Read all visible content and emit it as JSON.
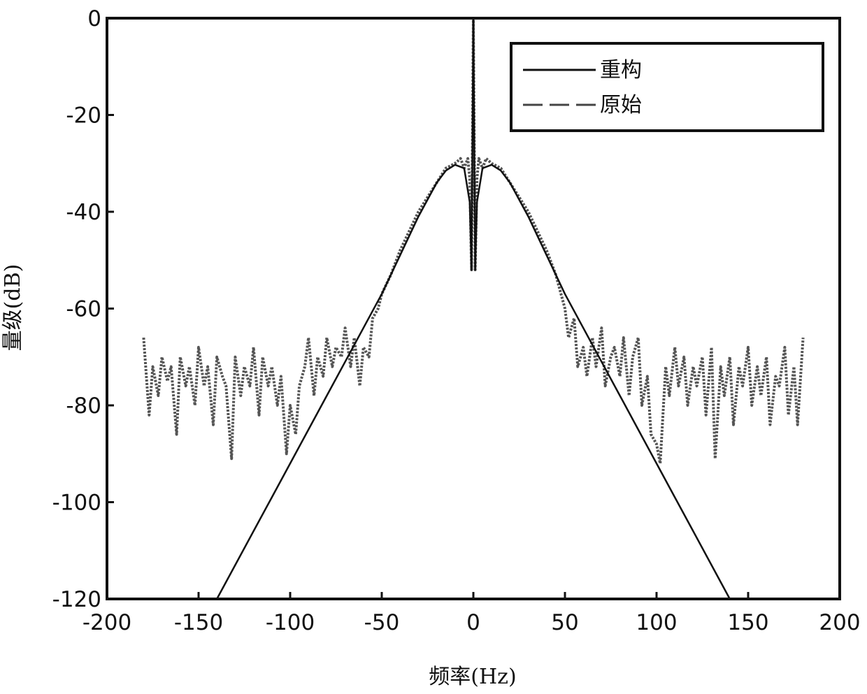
{
  "chart_data": {
    "type": "line",
    "title": "",
    "xlabel": "频率(Hz)",
    "ylabel": "量级(dB)",
    "xlim": [
      -200,
      200
    ],
    "ylim": [
      -120,
      0
    ],
    "xticks": [
      -200,
      -150,
      -100,
      -50,
      0,
      50,
      100,
      150,
      200
    ],
    "yticks": [
      0,
      -20,
      -40,
      -60,
      -80,
      -100,
      -120
    ],
    "grid": false,
    "legend": {
      "position": "top-right",
      "entries": [
        "重构",
        "原始"
      ]
    },
    "series": [
      {
        "name": "重构",
        "style": "solid",
        "color": "#111111",
        "points": [
          [
            -140,
            -120
          ],
          [
            -130,
            -113
          ],
          [
            -120,
            -106
          ],
          [
            -110,
            -99
          ],
          [
            -100,
            -92
          ],
          [
            -90,
            -85
          ],
          [
            -80,
            -78
          ],
          [
            -70,
            -71
          ],
          [
            -60,
            -64
          ],
          [
            -50,
            -57
          ],
          [
            -40,
            -49
          ],
          [
            -30,
            -41
          ],
          [
            -20,
            -34
          ],
          [
            -15,
            -31.5
          ],
          [
            -10,
            -30.3
          ],
          [
            -5,
            -31
          ],
          [
            -2,
            -38
          ],
          [
            -1,
            -52
          ],
          [
            0,
            0
          ],
          [
            1,
            -52
          ],
          [
            2,
            -38
          ],
          [
            5,
            -31
          ],
          [
            10,
            -30.3
          ],
          [
            15,
            -31.5
          ],
          [
            20,
            -34
          ],
          [
            30,
            -41
          ],
          [
            40,
            -49
          ],
          [
            50,
            -57
          ],
          [
            60,
            -64
          ],
          [
            70,
            -71
          ],
          [
            80,
            -78
          ],
          [
            90,
            -85
          ],
          [
            100,
            -92
          ],
          [
            110,
            -99
          ],
          [
            120,
            -106
          ],
          [
            130,
            -113
          ],
          [
            140,
            -120
          ]
        ]
      },
      {
        "name": "原始",
        "style": "dashed",
        "color": "#555555",
        "points": [
          [
            -180,
            -66
          ],
          [
            -177,
            -82
          ],
          [
            -175,
            -72
          ],
          [
            -172,
            -78
          ],
          [
            -170,
            -70
          ],
          [
            -167,
            -75
          ],
          [
            -165,
            -72
          ],
          [
            -162,
            -86
          ],
          [
            -160,
            -70
          ],
          [
            -157,
            -76
          ],
          [
            -155,
            -72
          ],
          [
            -152,
            -80
          ],
          [
            -150,
            -68
          ],
          [
            -147,
            -76
          ],
          [
            -145,
            -72
          ],
          [
            -142,
            -84
          ],
          [
            -140,
            -70
          ],
          [
            -137,
            -74
          ],
          [
            -135,
            -76
          ],
          [
            -132,
            -91
          ],
          [
            -130,
            -70
          ],
          [
            -127,
            -78
          ],
          [
            -125,
            -72
          ],
          [
            -122,
            -76
          ],
          [
            -120,
            -68
          ],
          [
            -117,
            -82
          ],
          [
            -115,
            -70
          ],
          [
            -112,
            -76
          ],
          [
            -110,
            -72
          ],
          [
            -107,
            -80
          ],
          [
            -105,
            -74
          ],
          [
            -102,
            -90
          ],
          [
            -100,
            -80
          ],
          [
            -97,
            -86
          ],
          [
            -95,
            -76
          ],
          [
            -92,
            -72
          ],
          [
            -90,
            -66
          ],
          [
            -87,
            -78
          ],
          [
            -85,
            -70
          ],
          [
            -82,
            -74
          ],
          [
            -80,
            -66
          ],
          [
            -77,
            -72
          ],
          [
            -75,
            -68
          ],
          [
            -72,
            -70
          ],
          [
            -70,
            -64
          ],
          [
            -67,
            -72
          ],
          [
            -65,
            -66
          ],
          [
            -62,
            -76
          ],
          [
            -60,
            -68
          ],
          [
            -57,
            -70
          ],
          [
            -55,
            -62
          ],
          [
            -52,
            -60
          ],
          [
            -50,
            -57
          ],
          [
            -45,
            -53
          ],
          [
            -40,
            -48
          ],
          [
            -35,
            -44
          ],
          [
            -30,
            -40
          ],
          [
            -25,
            -37
          ],
          [
            -20,
            -34
          ],
          [
            -15,
            -31
          ],
          [
            -10,
            -30
          ],
          [
            -7,
            -29
          ],
          [
            -5,
            -31
          ],
          [
            -3,
            -29
          ],
          [
            -2,
            -33
          ],
          [
            -1,
            -52
          ],
          [
            0,
            0
          ],
          [
            1,
            -52
          ],
          [
            2,
            -33
          ],
          [
            3,
            -29
          ],
          [
            5,
            -31
          ],
          [
            7,
            -29
          ],
          [
            10,
            -30
          ],
          [
            15,
            -31
          ],
          [
            20,
            -34
          ],
          [
            25,
            -37
          ],
          [
            30,
            -40
          ],
          [
            35,
            -44
          ],
          [
            40,
            -48
          ],
          [
            45,
            -53
          ],
          [
            50,
            -60
          ],
          [
            52,
            -66
          ],
          [
            55,
            -62
          ],
          [
            57,
            -72
          ],
          [
            60,
            -68
          ],
          [
            62,
            -74
          ],
          [
            65,
            -66
          ],
          [
            67,
            -72
          ],
          [
            70,
            -64
          ],
          [
            72,
            -76
          ],
          [
            75,
            -70
          ],
          [
            77,
            -68
          ],
          [
            80,
            -74
          ],
          [
            82,
            -66
          ],
          [
            85,
            -78
          ],
          [
            87,
            -70
          ],
          [
            90,
            -66
          ],
          [
            92,
            -80
          ],
          [
            95,
            -74
          ],
          [
            97,
            -86
          ],
          [
            100,
            -88
          ],
          [
            102,
            -92
          ],
          [
            105,
            -72
          ],
          [
            107,
            -78
          ],
          [
            110,
            -68
          ],
          [
            112,
            -76
          ],
          [
            115,
            -70
          ],
          [
            117,
            -80
          ],
          [
            120,
            -72
          ],
          [
            122,
            -76
          ],
          [
            125,
            -70
          ],
          [
            127,
            -82
          ],
          [
            130,
            -68
          ],
          [
            132,
            -91
          ],
          [
            135,
            -72
          ],
          [
            137,
            -78
          ],
          [
            140,
            -70
          ],
          [
            142,
            -84
          ],
          [
            145,
            -72
          ],
          [
            147,
            -76
          ],
          [
            150,
            -68
          ],
          [
            152,
            -80
          ],
          [
            155,
            -72
          ],
          [
            157,
            -78
          ],
          [
            160,
            -70
          ],
          [
            162,
            -84
          ],
          [
            165,
            -74
          ],
          [
            167,
            -76
          ],
          [
            170,
            -68
          ],
          [
            172,
            -82
          ],
          [
            175,
            -72
          ],
          [
            177,
            -84
          ],
          [
            180,
            -66
          ]
        ]
      }
    ]
  }
}
